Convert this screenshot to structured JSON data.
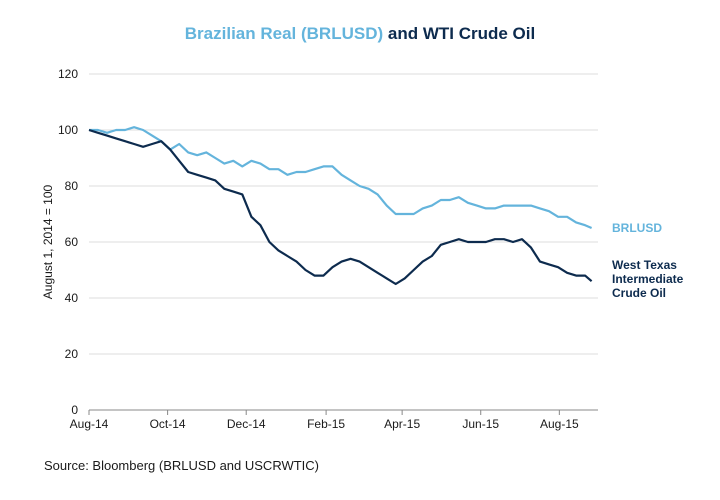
{
  "title": {
    "part1": "Brazilian Real (BRLUSD)",
    "part2": " and WTI Crude Oil"
  },
  "source": "Source: Bloomberg (BRLUSD and USCRWTIC)",
  "colors": {
    "brlusd": "#64b4dc",
    "wti": "#0d2b4e",
    "grid": "#dcdcdc",
    "axis": "#888888"
  },
  "chart_data": {
    "type": "line",
    "title": "Brazilian Real (BRLUSD) and WTI Crude Oil",
    "ylabel": "August 1, 2014 = 100",
    "xlabel": "",
    "ylim": [
      0,
      120
    ],
    "yticks": [
      0,
      20,
      40,
      60,
      80,
      100,
      120
    ],
    "xlim": [
      "2014-08-01",
      "2015-08-31"
    ],
    "xticks": [
      {
        "date": "2014-08-01",
        "label": "Aug-14"
      },
      {
        "date": "2014-10-01",
        "label": "Oct-14"
      },
      {
        "date": "2014-12-01",
        "label": "Dec-14"
      },
      {
        "date": "2015-02-01",
        "label": "Feb-15"
      },
      {
        "date": "2015-04-01",
        "label": "Apr-15"
      },
      {
        "date": "2015-06-01",
        "label": "Jun-15"
      },
      {
        "date": "2015-08-01",
        "label": "Aug-15"
      }
    ],
    "grid": true,
    "legend": "inline labels at right end of lines",
    "series": [
      {
        "name": "BRLUSD",
        "label_lines": [
          "BRLUSD"
        ],
        "points": [
          [
            "2014-08-01",
            100
          ],
          [
            "2014-08-08",
            100
          ],
          [
            "2014-08-15",
            99
          ],
          [
            "2014-08-22",
            100
          ],
          [
            "2014-08-29",
            100
          ],
          [
            "2014-09-05",
            101
          ],
          [
            "2014-09-12",
            100
          ],
          [
            "2014-09-19",
            98
          ],
          [
            "2014-09-26",
            96
          ],
          [
            "2014-10-03",
            93
          ],
          [
            "2014-10-10",
            95
          ],
          [
            "2014-10-17",
            92
          ],
          [
            "2014-10-24",
            91
          ],
          [
            "2014-10-31",
            92
          ],
          [
            "2014-11-07",
            90
          ],
          [
            "2014-11-14",
            88
          ],
          [
            "2014-11-21",
            89
          ],
          [
            "2014-11-28",
            87
          ],
          [
            "2014-12-05",
            89
          ],
          [
            "2014-12-12",
            88
          ],
          [
            "2014-12-19",
            86
          ],
          [
            "2014-12-26",
            86
          ],
          [
            "2015-01-02",
            84
          ],
          [
            "2015-01-09",
            85
          ],
          [
            "2015-01-16",
            85
          ],
          [
            "2015-01-23",
            86
          ],
          [
            "2015-01-30",
            87
          ],
          [
            "2015-02-06",
            87
          ],
          [
            "2015-02-13",
            84
          ],
          [
            "2015-02-20",
            82
          ],
          [
            "2015-02-27",
            80
          ],
          [
            "2015-03-06",
            79
          ],
          [
            "2015-03-13",
            77
          ],
          [
            "2015-03-20",
            73
          ],
          [
            "2015-03-27",
            70
          ],
          [
            "2015-04-03",
            70
          ],
          [
            "2015-04-10",
            70
          ],
          [
            "2015-04-17",
            72
          ],
          [
            "2015-04-24",
            73
          ],
          [
            "2015-05-01",
            75
          ],
          [
            "2015-05-08",
            75
          ],
          [
            "2015-05-15",
            76
          ],
          [
            "2015-05-22",
            74
          ],
          [
            "2015-05-29",
            73
          ],
          [
            "2015-06-05",
            72
          ],
          [
            "2015-06-12",
            72
          ],
          [
            "2015-06-19",
            73
          ],
          [
            "2015-06-26",
            73
          ],
          [
            "2015-07-03",
            73
          ],
          [
            "2015-07-10",
            73
          ],
          [
            "2015-07-17",
            72
          ],
          [
            "2015-07-24",
            71
          ],
          [
            "2015-07-31",
            69
          ],
          [
            "2015-08-07",
            69
          ],
          [
            "2015-08-14",
            67
          ],
          [
            "2015-08-21",
            66
          ],
          [
            "2015-08-26",
            65
          ]
        ]
      },
      {
        "name": "West Texas Intermediate Crude Oil",
        "label_lines": [
          "West Texas",
          "Intermediate",
          "Crude Oil"
        ],
        "points": [
          [
            "2014-08-01",
            100
          ],
          [
            "2014-08-08",
            99
          ],
          [
            "2014-08-15",
            98
          ],
          [
            "2014-08-22",
            97
          ],
          [
            "2014-08-29",
            96
          ],
          [
            "2014-09-05",
            95
          ],
          [
            "2014-09-12",
            94
          ],
          [
            "2014-09-19",
            95
          ],
          [
            "2014-09-26",
            96
          ],
          [
            "2014-10-03",
            93
          ],
          [
            "2014-10-10",
            89
          ],
          [
            "2014-10-17",
            85
          ],
          [
            "2014-10-24",
            84
          ],
          [
            "2014-10-31",
            83
          ],
          [
            "2014-11-07",
            82
          ],
          [
            "2014-11-14",
            79
          ],
          [
            "2014-11-21",
            78
          ],
          [
            "2014-11-28",
            77
          ],
          [
            "2014-12-05",
            69
          ],
          [
            "2014-12-12",
            66
          ],
          [
            "2014-12-19",
            60
          ],
          [
            "2014-12-26",
            57
          ],
          [
            "2015-01-02",
            55
          ],
          [
            "2015-01-09",
            53
          ],
          [
            "2015-01-16",
            50
          ],
          [
            "2015-01-23",
            48
          ],
          [
            "2015-01-30",
            48
          ],
          [
            "2015-02-06",
            51
          ],
          [
            "2015-02-13",
            53
          ],
          [
            "2015-02-20",
            54
          ],
          [
            "2015-02-27",
            53
          ],
          [
            "2015-03-06",
            51
          ],
          [
            "2015-03-13",
            49
          ],
          [
            "2015-03-20",
            47
          ],
          [
            "2015-03-27",
            45
          ],
          [
            "2015-04-03",
            47
          ],
          [
            "2015-04-10",
            50
          ],
          [
            "2015-04-17",
            53
          ],
          [
            "2015-04-24",
            55
          ],
          [
            "2015-05-01",
            59
          ],
          [
            "2015-05-08",
            60
          ],
          [
            "2015-05-15",
            61
          ],
          [
            "2015-05-22",
            60
          ],
          [
            "2015-05-29",
            60
          ],
          [
            "2015-06-05",
            60
          ],
          [
            "2015-06-12",
            61
          ],
          [
            "2015-06-19",
            61
          ],
          [
            "2015-06-26",
            60
          ],
          [
            "2015-07-03",
            61
          ],
          [
            "2015-07-10",
            58
          ],
          [
            "2015-07-17",
            53
          ],
          [
            "2015-07-24",
            52
          ],
          [
            "2015-07-31",
            51
          ],
          [
            "2015-08-07",
            49
          ],
          [
            "2015-08-14",
            48
          ],
          [
            "2015-08-21",
            48
          ],
          [
            "2015-08-26",
            46
          ]
        ]
      }
    ]
  }
}
